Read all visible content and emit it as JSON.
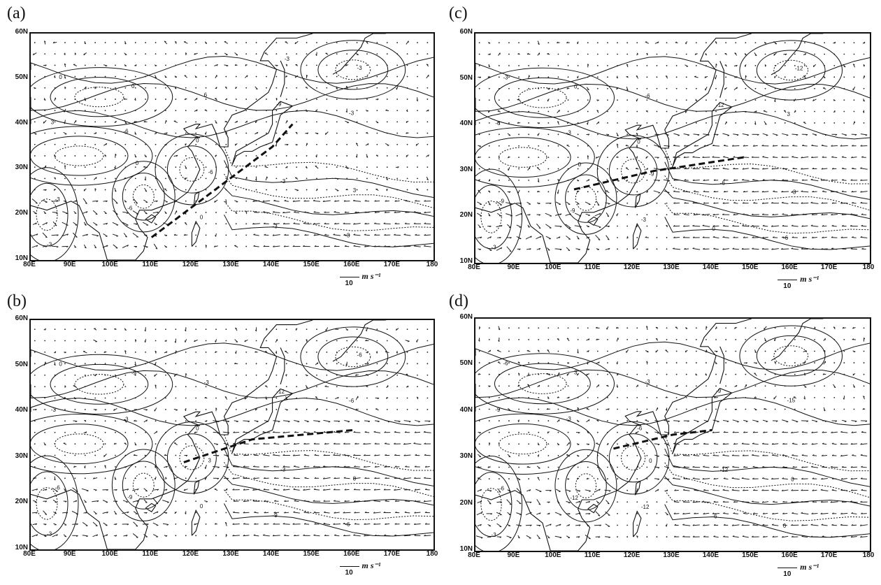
{
  "panels": [
    {
      "id": "a",
      "label": "(a)",
      "jet_axis": [
        [
          110,
          15
        ],
        [
          125,
          25
        ],
        [
          140,
          35
        ],
        [
          145,
          40
        ]
      ]
    },
    {
      "id": "c",
      "label": "(c)",
      "jet_axis": [
        [
          105,
          26
        ],
        [
          125,
          30
        ],
        [
          148,
          33
        ]
      ]
    },
    {
      "id": "b",
      "label": "(b)",
      "jet_axis": [
        [
          118,
          29
        ],
        [
          135,
          34
        ],
        [
          160,
          36
        ]
      ]
    },
    {
      "id": "d",
      "label": "(d)",
      "jet_axis": [
        [
          115,
          32
        ],
        [
          130,
          35
        ],
        [
          140,
          36
        ]
      ]
    }
  ],
  "lat_labels": [
    "60N",
    "50N",
    "40N",
    "30N",
    "20N",
    "10N"
  ],
  "lon_labels": [
    "80E",
    "90E",
    "100E",
    "110E",
    "120E",
    "130E",
    "140E",
    "150E",
    "160E",
    "170E",
    "180"
  ],
  "scale": {
    "value": "10",
    "unit": "m s⁻¹"
  },
  "contour_labels": {
    "a": [
      "-3",
      "0",
      "-3",
      "-6",
      "-3",
      "3",
      "0",
      "-3",
      "-6",
      "-9",
      "-3",
      "6",
      "3",
      "0",
      "-3",
      "0",
      "-6",
      "-3",
      "0",
      "-3"
    ],
    "c": [
      "-3",
      "0",
      "-6",
      "-3",
      "0",
      "-6",
      "-3",
      "3",
      "-9",
      "-12",
      "-9",
      "-6",
      "-3",
      "0",
      "-6",
      "-3",
      "-9",
      "-12",
      "0"
    ],
    "b": [
      "-3",
      "0",
      "-6",
      "-3",
      "-9",
      "-3",
      "0",
      "-6",
      "-9",
      "-12",
      "-6",
      "-3",
      "0",
      "-9",
      "-3",
      "0",
      "3",
      "-6"
    ],
    "d": [
      "-3",
      "-6",
      "0",
      "-3",
      "-6",
      "-9",
      "-12",
      "-15",
      "-12",
      "-9",
      "-6",
      "-3",
      "0",
      "3",
      "-12",
      "-6",
      "0"
    ]
  }
}
